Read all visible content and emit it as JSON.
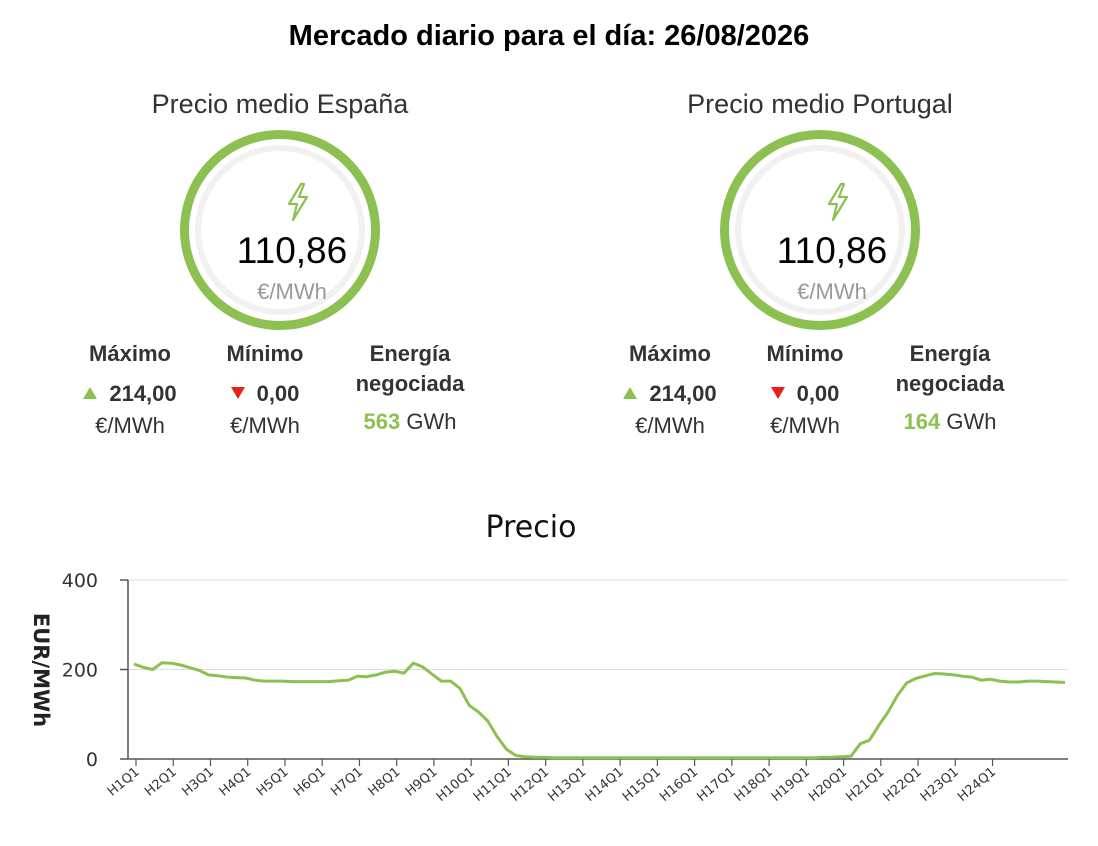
{
  "page_title": "Mercado diario para el día: 26/08/2026",
  "colors": {
    "accent": "#8cc152",
    "down": "#e2231a",
    "ring_track": "#f1f1f1"
  },
  "markets": [
    {
      "title": "Precio medio España",
      "icon": "lightning-bolt-icon",
      "price": "110,86",
      "unit": "€/MWh",
      "max_label": "Máximo",
      "max_value": "214,00",
      "max_unit": "€/MWh",
      "min_label": "Mínimo",
      "min_value": "0,00",
      "min_unit": "€/MWh",
      "energy_label_1": "Energía",
      "energy_label_2": "negociada",
      "energy_value": "563",
      "energy_unit": "GWh"
    },
    {
      "title": "Precio medio Portugal",
      "icon": "lightning-bolt-icon",
      "price": "110,86",
      "unit": "€/MWh",
      "max_label": "Máximo",
      "max_value": "214,00",
      "max_unit": "€/MWh",
      "min_label": "Mínimo",
      "min_value": "0,00",
      "min_unit": "€/MWh",
      "energy_label_1": "Energía",
      "energy_label_2": "negociada",
      "energy_value": "164",
      "energy_unit": "GWh"
    }
  ],
  "chart_data": {
    "type": "line",
    "title": "Precio",
    "ylabel": "EUR/MWh",
    "xlabel": "",
    "ylim": [
      0,
      400
    ],
    "yticks": [
      0,
      200,
      400
    ],
    "grid": true,
    "legend": "none",
    "line_color": "#8cc152",
    "x_tick_labels": [
      "H1Q1",
      "H2Q1",
      "H3Q1",
      "H4Q1",
      "H5Q1",
      "H6Q1",
      "H7Q1",
      "H8Q1",
      "H9Q1",
      "H10Q1",
      "H11Q1",
      "H12Q1",
      "H13Q1",
      "H14Q1",
      "H15Q1",
      "H16Q1",
      "H17Q1",
      "H18Q1",
      "H19Q1",
      "H20Q1",
      "H21Q1",
      "H22Q1",
      "H23Q1",
      "H24Q1"
    ],
    "series": [
      {
        "values": [
          212,
          205,
          200,
          215,
          214,
          210,
          204,
          198,
          188,
          186,
          183,
          182,
          181,
          176,
          174,
          174,
          174,
          173,
          173,
          173,
          173,
          173,
          175,
          176,
          185,
          184,
          188,
          194,
          196,
          192,
          214,
          206,
          190,
          174,
          174,
          158,
          120,
          105,
          85,
          50,
          22,
          8,
          5,
          4,
          4,
          3,
          3,
          3,
          3,
          3,
          3,
          3,
          3,
          3,
          3,
          3,
          3,
          3,
          3,
          3,
          3,
          3,
          3,
          3,
          3,
          3,
          3,
          3,
          3,
          3,
          3,
          3,
          3,
          3,
          4,
          4,
          5,
          6,
          34,
          42,
          75,
          105,
          142,
          170,
          180,
          186,
          191,
          190,
          188,
          185,
          183,
          176,
          178,
          174,
          172,
          172,
          174,
          174,
          173,
          172,
          171
        ]
      }
    ]
  }
}
